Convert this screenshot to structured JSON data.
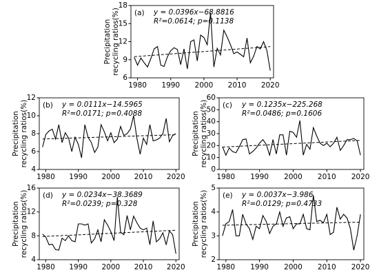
{
  "chart_data": [
    {
      "type": "line",
      "panel": "(a)",
      "equation": "y = 0.0396x−68.8816",
      "stats": "R²=0.0614; p=0.1138",
      "ylabel": [
        "Precipitation",
        "recycling ratios(%)"
      ],
      "x": [
        1979,
        1980,
        1981,
        1982,
        1983,
        1984,
        1985,
        1986,
        1987,
        1988,
        1989,
        1990,
        1991,
        1992,
        1993,
        1994,
        1995,
        1996,
        1997,
        1998,
        1999,
        2000,
        2001,
        2002,
        2003,
        2004,
        2005,
        2006,
        2007,
        2008,
        2009,
        2010,
        2011,
        2012,
        2013,
        2014,
        2015,
        2016,
        2017,
        2018,
        2019,
        2020
      ],
      "values": [
        9.4,
        8.1,
        9.3,
        8.5,
        7.8,
        9.2,
        10.8,
        11.2,
        8.1,
        7.9,
        9.5,
        10.5,
        11.0,
        10.7,
        8.2,
        10.8,
        7.5,
        12.0,
        12.3,
        8.8,
        13.1,
        12.7,
        11.5,
        16.8,
        7.8,
        10.9,
        9.8,
        13.9,
        12.8,
        11.5,
        10.0,
        10.3,
        9.9,
        9.5,
        12.6,
        8.5,
        9.6,
        11.2,
        10.8,
        12.0,
        10.5,
        7.2
      ],
      "color": "#000000",
      "xlim": [
        1978,
        2021
      ],
      "xticks": [
        1980,
        1990,
        2000,
        2010,
        2020
      ],
      "ylim": [
        6,
        18
      ],
      "yticks": [
        6,
        9,
        12,
        15,
        18
      ]
    },
    {
      "type": "line",
      "panel": "(b)",
      "equation": "y = 0.0111x−14.5965",
      "stats": "R²=0.0171; p=0.4088",
      "ylabel": [
        "Precipitation",
        "recycling ratios(%)"
      ],
      "x": [
        1979,
        1980,
        1981,
        1982,
        1983,
        1984,
        1985,
        1986,
        1987,
        1988,
        1989,
        1990,
        1991,
        1992,
        1993,
        1994,
        1995,
        1996,
        1997,
        1998,
        1999,
        2000,
        2001,
        2002,
        2003,
        2004,
        2005,
        2006,
        2007,
        2008,
        2009,
        2010,
        2011,
        2012,
        2013,
        2014,
        2015,
        2016,
        2017,
        2018,
        2019,
        2020
      ],
      "values": [
        6.5,
        7.9,
        8.3,
        8.5,
        7.4,
        9.0,
        7.0,
        8.1,
        7.5,
        6.0,
        7.6,
        6.8,
        5.3,
        9.0,
        7.6,
        7.0,
        5.9,
        6.5,
        9.0,
        8.2,
        7.2,
        8.1,
        7.0,
        7.4,
        8.8,
        7.8,
        8.0,
        8.5,
        10.0,
        7.5,
        5.7,
        7.5,
        6.8,
        9.0,
        7.2,
        7.3,
        7.5,
        8.0,
        9.7,
        7.1,
        7.8,
        8.0
      ],
      "color": "#000000",
      "xlim": [
        1978,
        2021
      ],
      "xticks": [
        1980,
        1990,
        2000,
        2010,
        2020
      ],
      "ylim": [
        4,
        12
      ],
      "yticks": [
        4,
        6,
        8,
        10,
        12
      ]
    },
    {
      "type": "line",
      "panel": "(c)",
      "equation": "y = 0.1235x−225.268",
      "stats": "R²=0.0486; p=0.1606",
      "ylabel": [
        "Precipitation",
        "recycling ratios(%)"
      ],
      "x": [
        1979,
        1980,
        1981,
        1982,
        1983,
        1984,
        1985,
        1986,
        1987,
        1988,
        1989,
        1990,
        1991,
        1992,
        1993,
        1994,
        1995,
        1996,
        1997,
        1998,
        1999,
        2000,
        2001,
        2002,
        2003,
        2004,
        2005,
        2006,
        2007,
        2008,
        2009,
        2010,
        2011,
        2012,
        2013,
        2014,
        2015,
        2016,
        2017,
        2018,
        2019,
        2020
      ],
      "values": [
        19,
        12,
        18,
        15,
        14,
        19,
        25,
        25.5,
        13,
        15,
        18,
        22,
        25,
        21,
        12,
        25,
        13,
        29,
        29,
        12,
        32,
        31,
        27,
        41,
        12,
        21,
        17,
        35,
        28,
        22,
        20,
        22,
        19,
        22,
        27,
        16,
        20,
        25,
        25,
        26,
        24,
        12
      ],
      "color": "#000000",
      "xlim": [
        1978,
        2021
      ],
      "xticks": [
        1980,
        1990,
        2000,
        2010,
        2020
      ],
      "ylim": [
        0,
        60
      ],
      "yticks": [
        0,
        10,
        20,
        30,
        40,
        50,
        60
      ]
    },
    {
      "type": "line",
      "panel": "(d)",
      "equation": "y = 0.0234x−38.3689",
      "stats": "R²=0.0239; p=0.328",
      "ylabel": [
        "Precipitation",
        "recycling ratios(%)"
      ],
      "x": [
        1979,
        1980,
        1981,
        1982,
        1983,
        1984,
        1985,
        1986,
        1987,
        1988,
        1989,
        1990,
        1991,
        1992,
        1993,
        1994,
        1995,
        1996,
        1997,
        1998,
        1999,
        2000,
        2001,
        2002,
        2003,
        2004,
        2005,
        2006,
        2007,
        2008,
        2009,
        2010,
        2011,
        2012,
        2013,
        2014,
        2015,
        2016,
        2017,
        2018,
        2019,
        2020
      ],
      "values": [
        8.3,
        7.8,
        6.5,
        6.6,
        5.7,
        5.6,
        7.6,
        7.2,
        8.0,
        7.2,
        7.0,
        10.0,
        10.0,
        9.8,
        10.0,
        6.8,
        7.5,
        9.0,
        7.0,
        10.7,
        9.8,
        8.7,
        7.2,
        14.5,
        8.6,
        8.2,
        11.4,
        9.0,
        11.3,
        10.2,
        9.3,
        9.0,
        9.3,
        6.5,
        10.5,
        7.0,
        7.5,
        8.5,
        6.5,
        8.8,
        8.2,
        5.0
      ],
      "color": "#000000",
      "xlim": [
        1978,
        2021
      ],
      "xticks": [
        1980,
        1990,
        2000,
        2010,
        2020
      ],
      "ylim": [
        4,
        16
      ],
      "yticks": [
        4,
        8,
        12,
        16
      ]
    },
    {
      "type": "line",
      "panel": "(e)",
      "equation": "y = 0.0037x−3.986",
      "stats": "R²=0.0129; p=0.4733",
      "ylabel": [
        "Precipitation",
        "recycling ratios(%)"
      ],
      "x": [
        1979,
        1980,
        1981,
        1982,
        1983,
        1984,
        1985,
        1986,
        1987,
        1988,
        1989,
        1990,
        1991,
        1992,
        1993,
        1994,
        1995,
        1996,
        1997,
        1998,
        1999,
        2000,
        2001,
        2002,
        2003,
        2004,
        2005,
        2006,
        2007,
        2008,
        2009,
        2010,
        2011,
        2012,
        2013,
        2014,
        2015,
        2016,
        2017,
        2018,
        2019,
        2020
      ],
      "values": [
        3.0,
        3.5,
        3.6,
        4.1,
        3.0,
        3.0,
        3.9,
        3.5,
        3.3,
        2.85,
        3.4,
        3.3,
        3.85,
        3.6,
        3.1,
        3.4,
        3.5,
        4.0,
        3.4,
        3.75,
        3.8,
        3.3,
        3.5,
        3.5,
        3.9,
        3.3,
        3.25,
        4.7,
        3.6,
        3.65,
        3.55,
        3.9,
        3.05,
        3.15,
        4.2,
        3.7,
        3.9,
        3.75,
        3.3,
        2.4,
        3.0,
        3.9
      ],
      "color": "#000000",
      "xlim": [
        1978,
        2021
      ],
      "xticks": [
        1980,
        1990,
        2000,
        2010,
        2020
      ],
      "ylim": [
        2,
        5
      ],
      "yticks": [
        2,
        3,
        4,
        5
      ]
    }
  ]
}
